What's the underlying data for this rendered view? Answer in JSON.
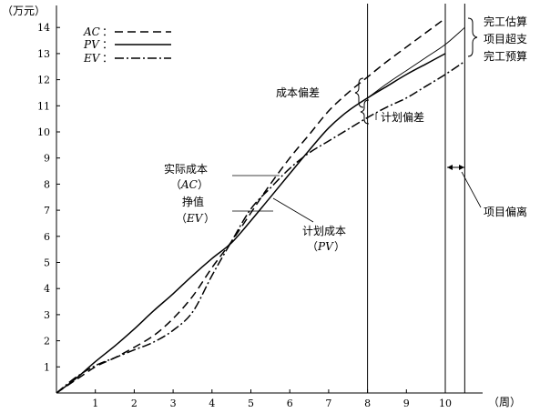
{
  "chart_data": {
    "type": "line",
    "y_unit": "（万元）",
    "x_unit": "（周）",
    "xlim": [
      0,
      10.5
    ],
    "ylim": [
      0,
      15
    ],
    "x_ticks": [
      "1",
      "2",
      "3",
      "4",
      "5",
      "6",
      "7",
      "8",
      "9",
      "10"
    ],
    "y_ticks": [
      "1",
      "2",
      "3",
      "4",
      "5",
      "6",
      "7",
      "8",
      "9",
      "10",
      "11",
      "12",
      "13",
      "14"
    ],
    "legend_position": "top-left",
    "legend": [
      {
        "abbr": "AC",
        "colon": "：",
        "dash": "dashed"
      },
      {
        "abbr": "PV",
        "colon": "：",
        "dash": "solid"
      },
      {
        "abbr": "EV",
        "colon": "：",
        "dash": "dashdot"
      }
    ],
    "series": [
      {
        "name": "AC",
        "dash": "dashed",
        "x": [
          0,
          0.5,
          1,
          1.5,
          2,
          2.5,
          3,
          3.5,
          4,
          4.5,
          5,
          5.5,
          6,
          6.5,
          7,
          7.5,
          8,
          8.5,
          9,
          9.5,
          10
        ],
        "y": [
          0,
          0.5,
          1.0,
          1.35,
          1.75,
          2.2,
          2.85,
          3.7,
          4.8,
          5.8,
          6.9,
          8.0,
          9.0,
          9.9,
          10.8,
          11.5,
          12.1,
          12.7,
          13.25,
          13.8,
          14.35
        ]
      },
      {
        "name": "PV",
        "dash": "solid",
        "x": [
          0,
          0.5,
          1,
          1.5,
          2,
          2.5,
          3,
          3.5,
          4,
          4.5,
          5,
          5.5,
          6,
          6.5,
          7,
          7.5,
          8,
          8.5,
          9,
          9.5,
          10
        ],
        "y": [
          0,
          0.55,
          1.2,
          1.8,
          2.45,
          3.15,
          3.8,
          4.5,
          5.15,
          5.75,
          6.6,
          7.5,
          8.4,
          9.3,
          10.15,
          10.8,
          11.3,
          11.75,
          12.2,
          12.6,
          13.0
        ]
      },
      {
        "name": "EV",
        "dash": "dashdot",
        "x": [
          0,
          0.5,
          1,
          1.5,
          2,
          2.5,
          3,
          3.5,
          4,
          4.5,
          5,
          5.5,
          6,
          6.5,
          7,
          7.5,
          8,
          8.5,
          9,
          9.5,
          10,
          10.5
        ],
        "y": [
          0,
          0.6,
          1.05,
          1.35,
          1.65,
          1.95,
          2.4,
          3.1,
          4.5,
          5.8,
          7.05,
          7.85,
          8.6,
          9.2,
          9.65,
          10.1,
          10.55,
          10.95,
          11.3,
          11.75,
          12.2,
          12.7
        ]
      }
    ],
    "extension_curve": {
      "x": [
        8,
        8.5,
        9,
        9.5,
        10,
        10.5
      ],
      "y": [
        11.3,
        11.85,
        12.35,
        12.85,
        13.35,
        14.0
      ]
    },
    "reference_lines_x": [
      8,
      10,
      10.5
    ],
    "annotations": {
      "ac_label": "实际成本",
      "ac_sub": "AC",
      "ev_label": "挣值",
      "ev_sub": "EV",
      "pv_label": "计划成本",
      "pv_sub": "PV",
      "cost_deviation": "成本偏差",
      "schedule_deviation": "计划偏差",
      "completion_estimate": "完工估算",
      "overrun": "项目超支",
      "completion_budget": "完工预算",
      "project_deviation": "项目偏离",
      "paren_open": "（",
      "paren_close": "）"
    }
  }
}
